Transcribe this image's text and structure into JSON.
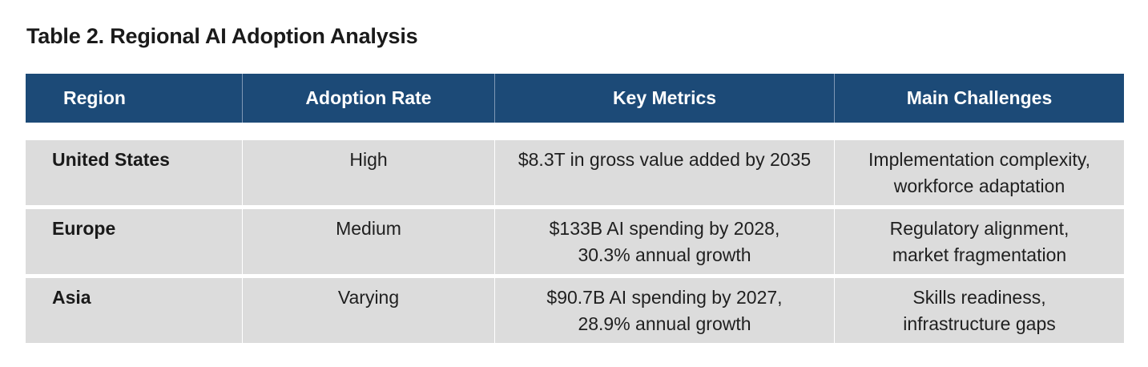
{
  "title": "Table 2. Regional AI Adoption Analysis",
  "table": {
    "headers": [
      "Region",
      "Adoption Rate",
      "Key Metrics",
      "Main Challenges"
    ],
    "rows": [
      {
        "region": "United States",
        "adoption_rate": "High",
        "key_metrics": [
          "$8.3T in gross value added by 2035"
        ],
        "main_challenges": [
          "Implementation complexity,",
          "workforce adaptation"
        ]
      },
      {
        "region": "Europe",
        "adoption_rate": "Medium",
        "key_metrics": [
          "$133B AI spending by 2028,",
          "30.3% annual growth"
        ],
        "main_challenges": [
          "Regulatory alignment,",
          "market fragmentation"
        ]
      },
      {
        "region": "Asia",
        "adoption_rate": "Varying",
        "key_metrics": [
          "$90.7B AI spending by 2027,",
          "28.9% annual growth"
        ],
        "main_challenges": [
          "Skills readiness,",
          "infrastructure gaps"
        ]
      }
    ]
  },
  "colors": {
    "header_bg": "#1c4a77",
    "row_bg": "#dcdcdc"
  }
}
